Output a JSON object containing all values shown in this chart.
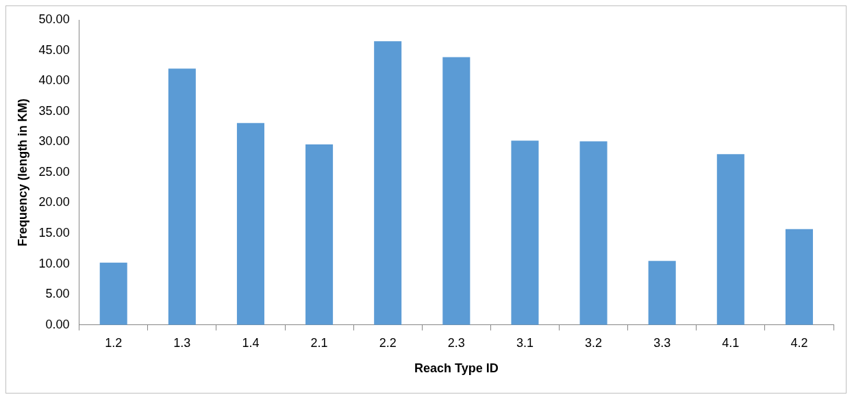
{
  "chart_data": {
    "type": "bar",
    "xlabel": "Reach Type ID",
    "ylabel": "Frequency (length in KM)",
    "categories": [
      "1.2",
      "1.3",
      "1.4",
      "2.1",
      "2.2",
      "2.3",
      "3.1",
      "3.2",
      "3.3",
      "4.1",
      "4.2"
    ],
    "values": [
      10.2,
      42.0,
      33.1,
      29.6,
      46.5,
      43.9,
      30.2,
      30.1,
      10.5,
      28.0,
      15.7
    ],
    "color": "#5b9bd5",
    "ylim": [
      0,
      50
    ],
    "yticks": [
      {
        "value": 0,
        "label": "0.00"
      },
      {
        "value": 5,
        "label": "5.00"
      },
      {
        "value": 10,
        "label": "10.00"
      },
      {
        "value": 15,
        "label": "15.00"
      },
      {
        "value": 20,
        "label": "20.00"
      },
      {
        "value": 25,
        "label": "25.00"
      },
      {
        "value": 30,
        "label": "30.00"
      },
      {
        "value": 35,
        "label": "35.00"
      },
      {
        "value": 40,
        "label": "40.00"
      },
      {
        "value": 45,
        "label": "45.00"
      },
      {
        "value": 50,
        "label": "50.00"
      }
    ],
    "grid": false,
    "legend": false
  }
}
